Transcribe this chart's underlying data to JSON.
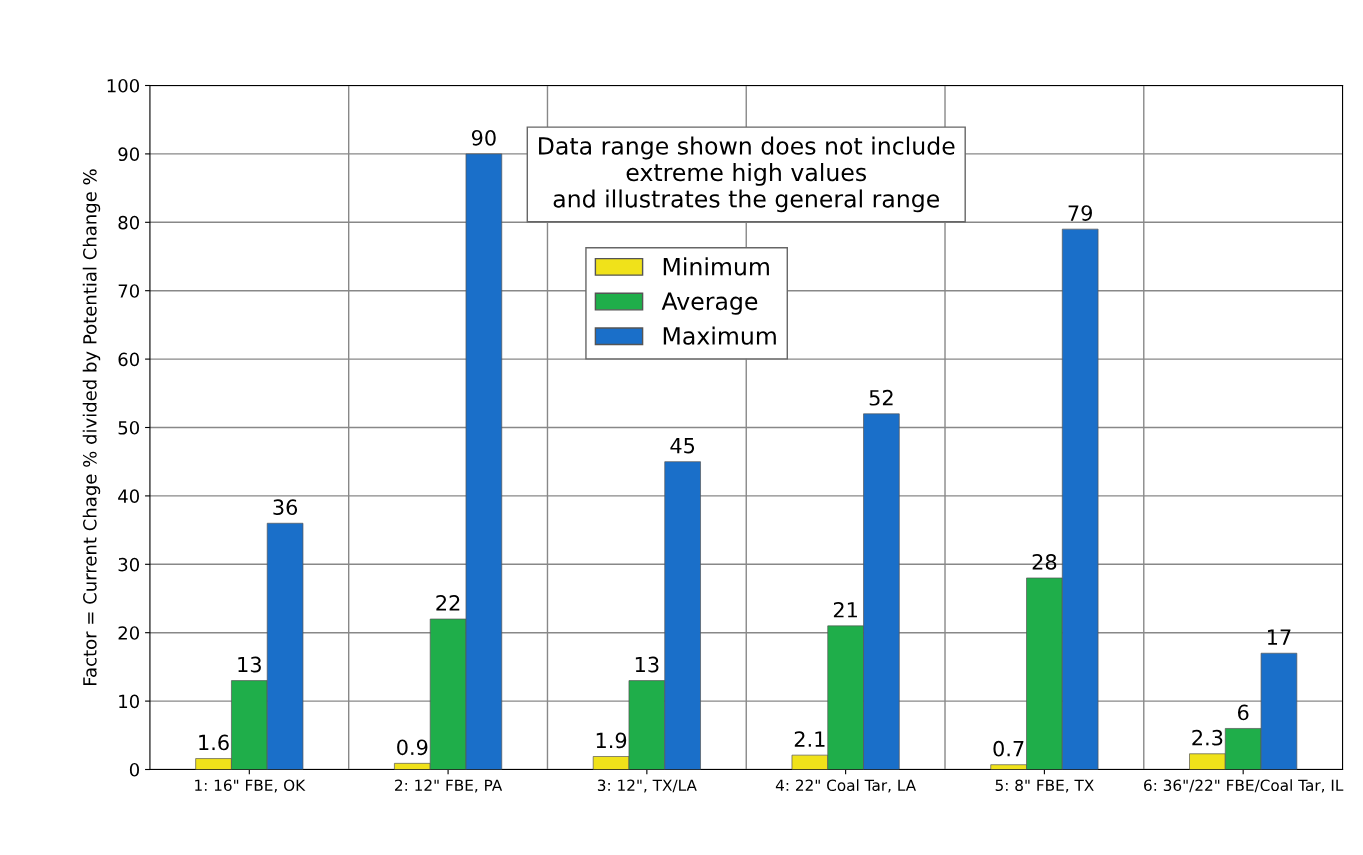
{
  "chart_data": {
    "type": "bar",
    "ylabel": "Factor = Current Chage % divided by Potential Change %",
    "categories": [
      "1: 16\" FBE, OK",
      "2: 12\" FBE, PA",
      "3: 12\", TX/LA",
      "4: 22\" Coal Tar, LA",
      "5: 8\" FBE, TX",
      "6: 36\"/22\" FBE/Coal Tar, IL"
    ],
    "series": [
      {
        "name": "Minimum",
        "color": "#f0e21a",
        "values": [
          1.6,
          0.9,
          1.9,
          2.1,
          0.7,
          2.3
        ]
      },
      {
        "name": "Average",
        "color": "#1fae4a",
        "values": [
          13,
          22,
          13,
          21,
          28,
          6
        ]
      },
      {
        "name": "Maximum",
        "color": "#1a6fc9",
        "values": [
          36,
          90,
          45,
          52,
          79,
          17
        ]
      }
    ],
    "ylim": [
      0,
      100
    ],
    "yticks": [
      0,
      10,
      20,
      30,
      40,
      50,
      60,
      70,
      80,
      90,
      100
    ],
    "grid": true,
    "legend": "top",
    "data_labels": true,
    "annotations": [
      "Data range shown does not include\nextreme high values\nand illustrates the general range"
    ]
  }
}
